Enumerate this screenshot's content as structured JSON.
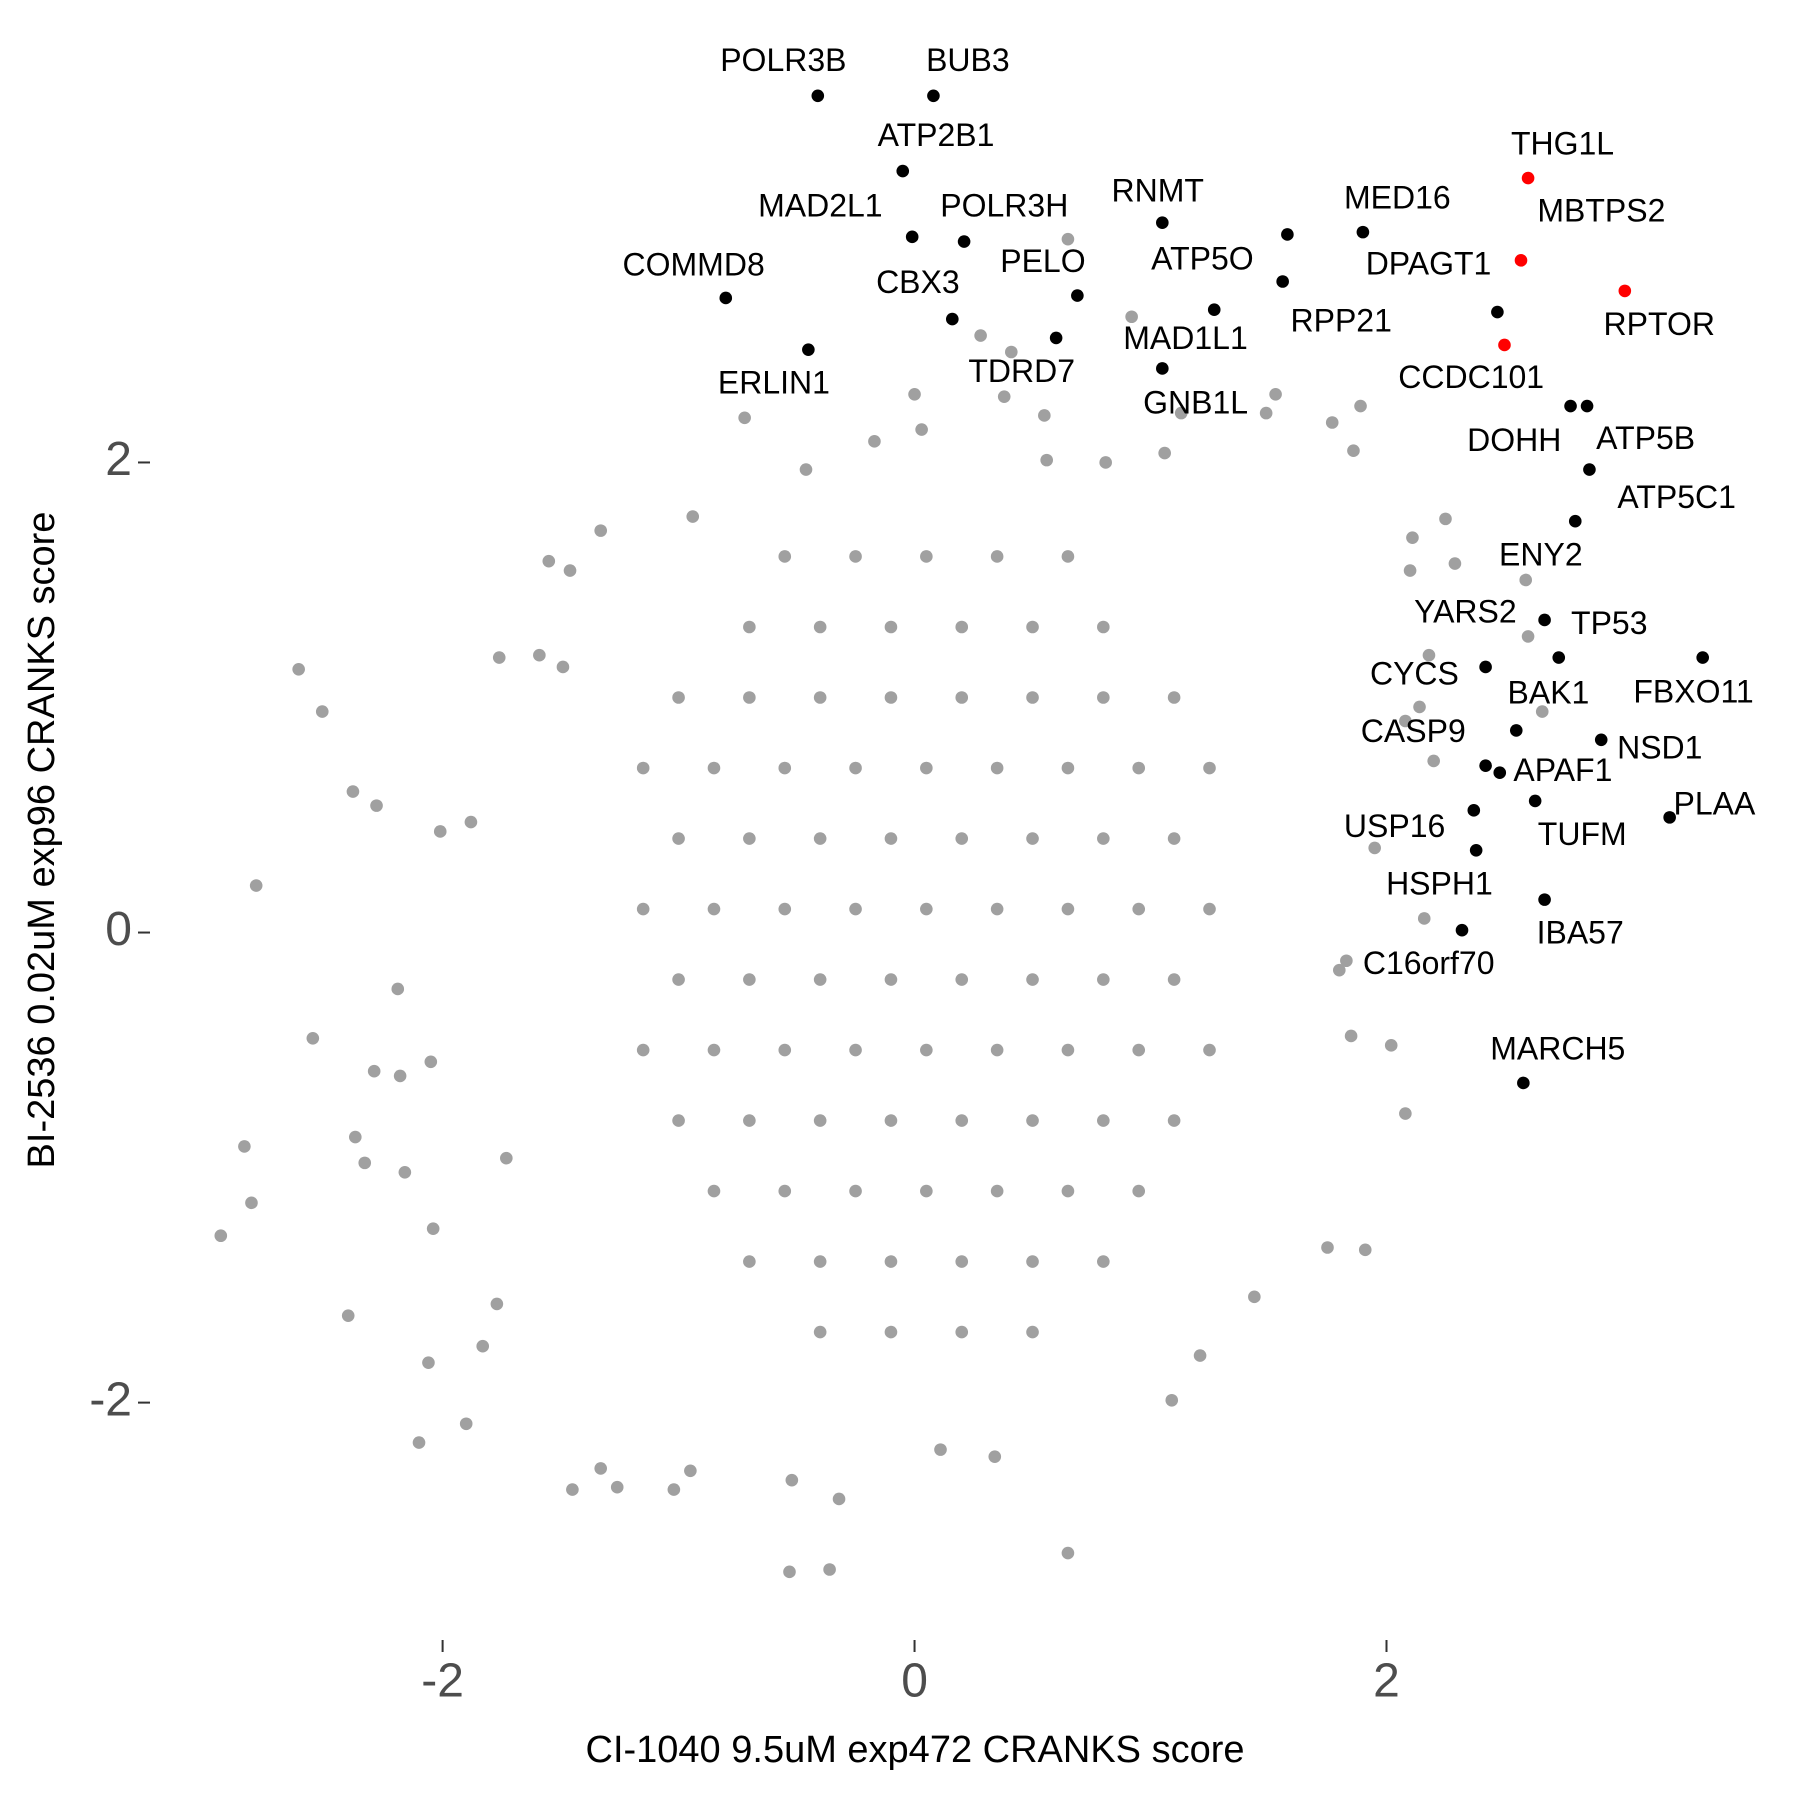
{
  "chart_data": {
    "type": "scatter",
    "xlabel": "CI-1040 9.5uM exp472 CRANKS score",
    "ylabel": "BI-2536 0.02uM exp96 CRANKS score",
    "xlim": [
      -3.24,
      3.71
    ],
    "ylim": [
      -3.01,
      3.84
    ],
    "xticks": [
      -2,
      0,
      2
    ],
    "yticks": [
      -2,
      0,
      2
    ],
    "grid": false,
    "series": [
      {
        "color": "#a0a0a0",
        "x": [
          -2.94,
          -2.84,
          -2.81,
          -2.79,
          -2.61,
          -2.51,
          -2.55,
          -2.4,
          -2.38,
          -2.37,
          -2.33,
          -2.29,
          -2.28,
          -2.19,
          -2.18,
          -2.16,
          -2.1,
          -2.06,
          -2.04,
          -2.05,
          -2.01,
          -1.9,
          -1.88,
          -1.76,
          -1.77,
          -1.73,
          -1.83,
          -1.59,
          -1.55,
          -1.49,
          -1.46,
          -1.45,
          -1.33,
          -1.33,
          -1.26,
          -1.02,
          -0.94,
          -0.95,
          -0.72,
          -0.53,
          -0.36,
          -0.32,
          -0.52,
          0.0,
          0.03,
          0.28,
          0.41,
          0.38,
          0.65,
          0.55,
          0.92,
          0.65,
          0.34,
          0.11,
          1.09,
          1.21,
          1.44,
          1.75,
          1.91,
          2.08,
          2.02,
          1.85,
          2.16,
          2.2,
          2.14,
          2.08,
          2.18,
          2.29,
          2.25,
          2.11,
          2.1,
          1.89,
          1.86,
          1.77,
          1.53,
          1.49,
          1.13,
          1.06,
          0.81,
          0.56,
          -0.17,
          -0.46,
          2.59,
          2.6,
          2.66,
          1.95,
          1.83,
          1.8,
          -0.55,
          -0.25,
          0.05,
          0.35,
          0.65,
          -0.7,
          -0.4,
          -0.1,
          0.2,
          0.5,
          0.8,
          -1.0,
          -0.7,
          -0.4,
          -0.1,
          0.2,
          0.5,
          0.8,
          1.1,
          -1.15,
          -0.85,
          -0.55,
          -0.25,
          0.05,
          0.35,
          0.65,
          0.95,
          1.25,
          -1.0,
          -0.7,
          -0.4,
          -0.1,
          0.2,
          0.5,
          0.8,
          1.1,
          -1.15,
          -0.85,
          -0.55,
          -0.25,
          0.05,
          0.35,
          0.65,
          0.95,
          1.25,
          -1.0,
          -0.7,
          -0.4,
          -0.1,
          0.2,
          0.5,
          0.8,
          1.1,
          -1.15,
          -0.85,
          -0.55,
          -0.25,
          0.05,
          0.35,
          0.65,
          0.95,
          1.25,
          -1.0,
          -0.7,
          -0.4,
          -0.1,
          0.2,
          0.5,
          0.8,
          1.1,
          -0.85,
          -0.55,
          -0.25,
          0.05,
          0.35,
          0.65,
          0.95,
          -0.7,
          -0.4,
          -0.1,
          0.2,
          0.5,
          0.8,
          -0.4,
          -0.1,
          0.2,
          0.5
        ],
        "y": [
          -1.29,
          -0.91,
          -1.15,
          0.2,
          1.12,
          0.94,
          -0.45,
          -1.63,
          0.6,
          -0.87,
          -0.98,
          -0.59,
          0.54,
          -0.24,
          -0.61,
          -1.02,
          -2.17,
          -1.83,
          -1.26,
          -0.55,
          0.43,
          -2.09,
          0.47,
          1.17,
          -1.58,
          -0.96,
          -1.76,
          1.18,
          1.58,
          1.13,
          1.54,
          -2.37,
          -2.28,
          1.71,
          -2.36,
          -2.37,
          1.77,
          -2.29,
          2.19,
          -2.72,
          -2.71,
          -2.41,
          -2.33,
          2.29,
          2.14,
          2.54,
          2.47,
          2.28,
          2.95,
          2.2,
          2.62,
          -2.64,
          -2.23,
          -2.2,
          -1.99,
          -1.8,
          -1.55,
          -1.34,
          -1.35,
          -0.77,
          -0.48,
          -0.44,
          0.06,
          0.73,
          0.96,
          0.9,
          1.18,
          1.57,
          1.76,
          1.68,
          1.54,
          2.24,
          2.05,
          2.17,
          2.29,
          2.21,
          2.21,
          2.04,
          2.0,
          2.01,
          2.09,
          1.97,
          1.5,
          1.26,
          0.94,
          0.36,
          -0.12,
          -0.16,
          1.6,
          1.6,
          1.6,
          1.6,
          1.6,
          1.3,
          1.3,
          1.3,
          1.3,
          1.3,
          1.3,
          1.0,
          1.0,
          1.0,
          1.0,
          1.0,
          1.0,
          1.0,
          1.0,
          0.7,
          0.7,
          0.7,
          0.7,
          0.7,
          0.7,
          0.7,
          0.7,
          0.7,
          0.4,
          0.4,
          0.4,
          0.4,
          0.4,
          0.4,
          0.4,
          0.4,
          0.1,
          0.1,
          0.1,
          0.1,
          0.1,
          0.1,
          0.1,
          0.1,
          0.1,
          -0.2,
          -0.2,
          -0.2,
          -0.2,
          -0.2,
          -0.2,
          -0.2,
          -0.2,
          -0.5,
          -0.5,
          -0.5,
          -0.5,
          -0.5,
          -0.5,
          -0.5,
          -0.5,
          -0.5,
          -0.8,
          -0.8,
          -0.8,
          -0.8,
          -0.8,
          -0.8,
          -0.8,
          -0.8,
          -1.1,
          -1.1,
          -1.1,
          -1.1,
          -1.1,
          -1.1,
          -1.1,
          -1.4,
          -1.4,
          -1.4,
          -1.4,
          -1.4,
          -1.4,
          -1.7,
          -1.7,
          -1.7,
          -1.7
        ]
      },
      {
        "color": "#000000",
        "labels": [
          "POLR3B",
          "BUB3",
          "ATP2B1",
          "MAD2L1",
          "POLR3H",
          "COMMD8",
          "CBX3",
          "PELO",
          "TDRD7",
          "ERLIN1",
          "RNMT",
          "ATP5O",
          "MAD1L1",
          "GNB1L",
          "RPP21",
          "MED16",
          "DPAGT1",
          "DOHH",
          "ATP5B",
          "ATP5C1",
          "ENY2",
          "YARS2",
          "TP53",
          "CYCS",
          "FBXO11",
          "BAK1",
          "NSD1",
          "CASP9",
          "APAF1",
          "TUFM",
          "PLAA",
          "USP16",
          "HSPH1",
          "IBA57",
          "C16orf70",
          "MARCH5"
        ],
        "x": [
          -0.41,
          0.08,
          -0.05,
          -0.01,
          0.21,
          -0.8,
          0.16,
          0.69,
          0.6,
          -0.45,
          1.05,
          1.58,
          1.27,
          1.05,
          1.56,
          1.9,
          2.47,
          2.78,
          2.85,
          2.86,
          2.8,
          2.67,
          2.73,
          2.42,
          3.34,
          2.55,
          2.91,
          2.42,
          2.48,
          2.63,
          3.2,
          2.37,
          2.38,
          2.67,
          2.32,
          2.58
        ],
        "y": [
          3.56,
          3.56,
          3.24,
          2.96,
          2.94,
          2.7,
          2.61,
          2.71,
          2.53,
          2.48,
          3.02,
          2.97,
          2.65,
          2.4,
          2.77,
          2.98,
          2.64,
          2.24,
          2.24,
          1.97,
          1.75,
          1.33,
          1.17,
          1.13,
          1.17,
          0.86,
          0.82,
          0.71,
          0.68,
          0.56,
          0.49,
          0.52,
          0.35,
          0.14,
          0.01,
          -0.64
        ]
      },
      {
        "color": "#ff0000",
        "labels": [
          "THG1L",
          "MBTPS2",
          "RPTOR",
          "CCDC101"
        ],
        "x": [
          2.6,
          2.57,
          3.01,
          2.5
        ],
        "y": [
          3.21,
          2.86,
          2.73,
          2.5
        ]
      }
    ]
  }
}
